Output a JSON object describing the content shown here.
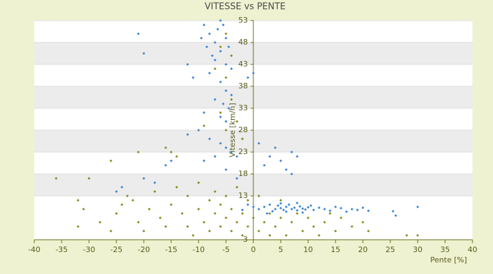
{
  "chart_data": {
    "type": "scatter",
    "title": "VITESSE vs PENTE",
    "x_label": "Pente [%]",
    "y_label": "Vitesse [km/h]",
    "xlim": [
      -40,
      40
    ],
    "xticks": [
      -40,
      -35,
      -30,
      -25,
      -20,
      -15,
      -10,
      -5,
      0,
      5,
      10,
      15,
      20,
      25,
      30,
      35,
      40
    ],
    "ylim": [
      3,
      53
    ],
    "yticks": [
      3,
      13,
      18,
      23,
      28,
      33,
      38,
      43,
      48,
      53
    ],
    "grid": true,
    "series": [
      {
        "color": "#3a86d4",
        "x": [
          -21,
          -20,
          -12,
          -11,
          -9.5,
          -9,
          -8.5,
          -8,
          -7.5,
          -7,
          -6.5,
          -6,
          -5.5,
          -5,
          -4.5,
          -6,
          -7,
          -5,
          -4,
          -8,
          -6,
          -5,
          -4,
          -7,
          -5.5,
          -4.5,
          -6,
          -5,
          -9,
          -10,
          -12,
          -8,
          -6,
          -5,
          -4,
          -3,
          -7,
          -9,
          -15,
          -16,
          -18,
          -20,
          -24,
          -25,
          -5,
          -3,
          -1,
          0,
          1,
          3,
          4,
          5,
          6,
          7,
          8,
          7,
          2,
          1,
          2,
          3,
          3.5,
          4,
          4.5,
          5,
          5.5,
          6,
          6.5,
          7,
          7.5,
          8,
          8.5,
          9,
          9.5,
          10,
          10.5,
          11,
          12,
          13,
          14,
          15,
          16,
          17,
          18,
          19,
          20,
          21,
          25.5,
          26,
          30,
          2.5,
          5,
          6,
          8,
          9,
          -1,
          0,
          -2
        ],
        "values": [
          50,
          45.5,
          43,
          40,
          49,
          52,
          47,
          50,
          45,
          48,
          51,
          53,
          52,
          49,
          47,
          46,
          44,
          43,
          42,
          41,
          39,
          37,
          36,
          35,
          34,
          33,
          31,
          30,
          32,
          28,
          27,
          26,
          25,
          24,
          23,
          22,
          22,
          21,
          21,
          20,
          16,
          17,
          15,
          14,
          19,
          17,
          40,
          41,
          25,
          22,
          24,
          21,
          19,
          23,
          22,
          18,
          20,
          10,
          10.5,
          11,
          9.5,
          10,
          10.8,
          10.2,
          9.8,
          10.5,
          11,
          10,
          10.3,
          9.7,
          10.6,
          10.1,
          9.9,
          10.4,
          10.8,
          9.8,
          10.3,
          10,
          9.6,
          10.5,
          10.2,
          9.4,
          10,
          9.8,
          10.3,
          9.6,
          9.5,
          8.5,
          10.5,
          9,
          11.3,
          9.4,
          11.4,
          9.2,
          11,
          10.5,
          9.8
        ]
      },
      {
        "color": "#8a8a20",
        "x": [
          -36,
          -32,
          -32,
          -31,
          -30,
          -28,
          -26,
          -25,
          -24,
          -23,
          -22,
          -21,
          -20,
          -19,
          -18,
          -17,
          -16,
          -15,
          -14,
          -14,
          -13,
          -12,
          -12,
          -11,
          -10,
          -10,
          -9,
          -8,
          -8,
          -7,
          -7,
          -6,
          -6,
          -5,
          -5,
          -4,
          -4,
          -3,
          -3,
          -2,
          -2,
          -1,
          -1,
          0,
          1,
          1,
          2,
          3,
          3,
          4,
          5,
          5,
          6,
          7,
          8,
          9,
          10,
          11,
          12,
          13,
          14,
          15,
          16,
          18,
          20,
          21,
          28,
          30,
          -21,
          -16,
          -5,
          -6,
          -4,
          -5,
          -7,
          -6,
          -4,
          -5,
          -3,
          -2,
          -9,
          -26,
          -15
        ],
        "values": [
          17,
          6,
          12,
          10,
          17,
          7,
          5,
          9,
          11,
          13,
          12,
          7,
          5,
          10,
          14,
          8,
          6,
          11,
          22,
          15,
          9,
          6,
          13,
          4,
          10,
          16,
          7,
          12,
          5,
          9,
          14,
          11,
          6,
          8,
          13,
          5,
          10,
          7,
          15,
          9,
          4,
          12,
          6,
          8,
          5,
          13,
          7,
          9,
          4,
          6,
          12,
          8,
          4,
          7,
          9,
          5,
          8,
          6,
          4,
          7,
          9,
          5,
          8,
          6,
          7,
          5,
          4,
          4,
          23,
          24,
          28,
          32,
          35,
          40,
          42,
          47,
          45,
          50,
          30,
          26,
          29,
          21,
          23
        ]
      }
    ]
  }
}
